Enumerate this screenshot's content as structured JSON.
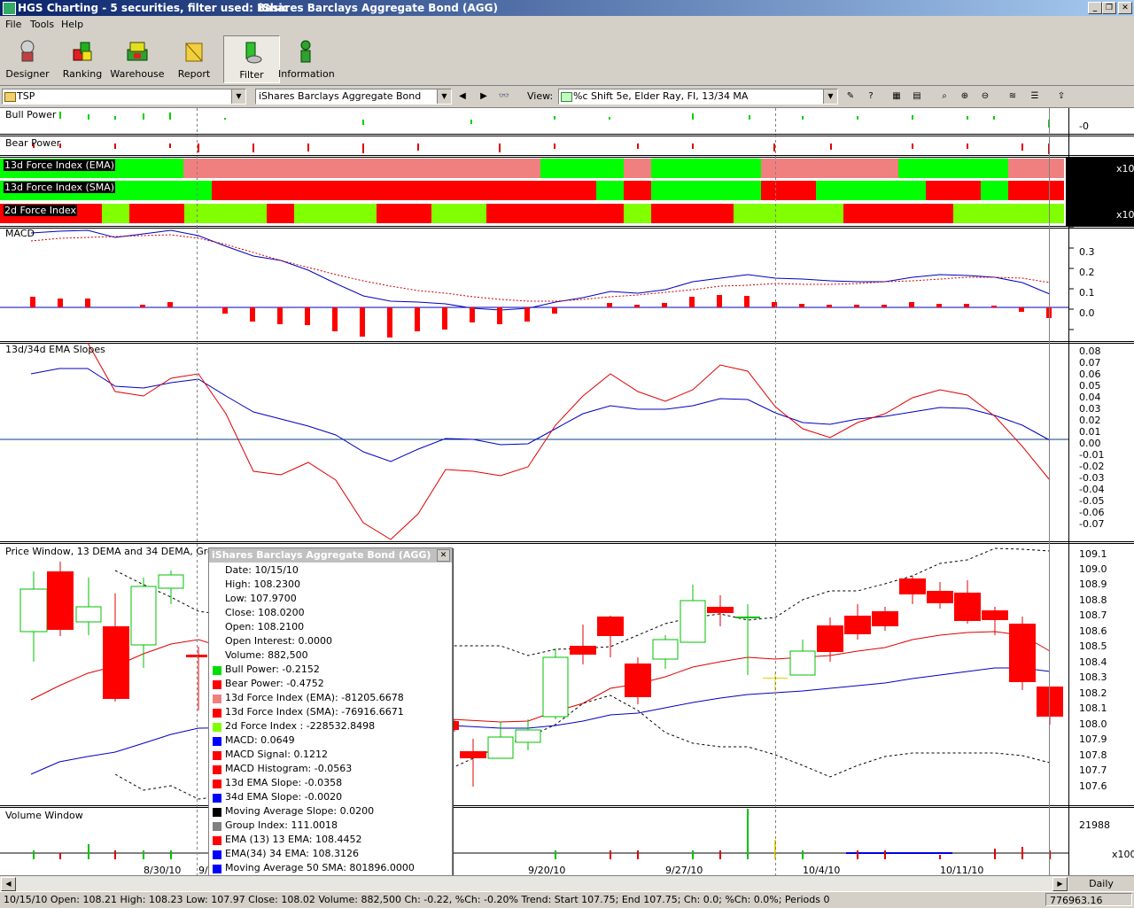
{
  "window": {
    "title": "HGS Charting - 5 securities, filter used: Basic",
    "security_title": "iShares Barclays Aggregate Bond (AGG)",
    "minimize": "_",
    "restore": "❐",
    "close": "✕"
  },
  "menu": [
    "File",
    "Tools",
    "Help"
  ],
  "toolbar": [
    {
      "label": "Designer",
      "icon": "designer-icon"
    },
    {
      "label": "Ranking",
      "icon": "ranking-icon"
    },
    {
      "label": "Warehouse",
      "icon": "warehouse-icon"
    },
    {
      "label": "Report",
      "icon": "report-icon"
    },
    {
      "label": "Filter",
      "icon": "filter-icon",
      "active": true
    },
    {
      "label": "Information",
      "icon": "information-icon"
    }
  ],
  "selectors": {
    "group": "TSP",
    "security": "iShares Barclays Aggregate Bond",
    "view_label": "View:",
    "view": "%c Shift 5e, Elder Ray, FI, 13/34 MA"
  },
  "panels": {
    "bull_power": "Bull Power",
    "bear_power": "Bear Power",
    "fi_ema": "13d Force Index (EMA)",
    "fi_sma": "13d Force Index (SMA)",
    "fi_2d": "2d Force Index",
    "macd": "MACD",
    "slopes": "13d/34d EMA Slopes",
    "price": "Price Window, 13 DEMA and 34 DEMA, Group",
    "volume": "Volume Window"
  },
  "axis": {
    "bull_value": "-0",
    "x10_a": "x10",
    "x10_b": "x10",
    "macd_ticks": [
      "0.3",
      "0.2",
      "0.1",
      "0.0"
    ],
    "slope_ticks": [
      "0.08",
      "0.07",
      "0.06",
      "0.05",
      "0.04",
      "0.03",
      "0.02",
      "0.01",
      "0.00",
      "-0.01",
      "-0.02",
      "-0.03",
      "-0.04",
      "-0.05",
      "-0.06",
      "-0.07"
    ],
    "price_ticks": [
      "109.1",
      "109.0",
      "108.9",
      "108.8",
      "108.7",
      "108.6",
      "108.5",
      "108.4",
      "108.3",
      "108.2",
      "108.1",
      "108.0",
      "107.9",
      "107.8",
      "107.7",
      "107.6"
    ],
    "volume_value": "21988",
    "volume_mult": "x100",
    "dates": [
      "8/30/10",
      "9/",
      "9/20/10",
      "9/27/10",
      "10/4/10",
      "10/11/10"
    ]
  },
  "popup": {
    "title": "iShares Barclays Aggregate Bond (AGG)",
    "close": "✕",
    "lines": [
      {
        "text": "Date: 10/15/10",
        "color": ""
      },
      {
        "text": "High: 108.2300",
        "color": ""
      },
      {
        "text": "Low: 107.9700",
        "color": ""
      },
      {
        "text": "Close: 108.0200",
        "color": ""
      },
      {
        "text": "Open: 108.2100",
        "color": ""
      },
      {
        "text": "Open Interest: 0.0000",
        "color": ""
      },
      {
        "text": "Volume: 882,500",
        "color": ""
      },
      {
        "text": "Bull Power: -0.2152",
        "color": "#00e000"
      },
      {
        "text": "Bear Power: -0.4752",
        "color": "#ff0000"
      },
      {
        "text": "13d Force Index (EMA): -81205.6678",
        "color": "#f08080"
      },
      {
        "text": "13d Force Index (SMA): -76916.6671",
        "color": "#ff0000"
      },
      {
        "text": "2d Force Index : -228532.8498",
        "color": "#80ff00"
      },
      {
        "text": "MACD: 0.0649",
        "color": "#0000ff"
      },
      {
        "text": "MACD Signal: 0.1212",
        "color": "#ff0000"
      },
      {
        "text": "MACD Histogram: -0.0563",
        "color": "#ff0000"
      },
      {
        "text": "13d EMA Slope: -0.0358",
        "color": "#ff0000"
      },
      {
        "text": "34d EMA Slope: -0.0020",
        "color": "#0000ff"
      },
      {
        "text": "Moving Average Slope: 0.0200",
        "color": "#000000"
      },
      {
        "text": "Group Index: 111.0018",
        "color": "#808080"
      },
      {
        "text": "EMA (13) 13 EMA: 108.4452",
        "color": "#ff0000"
      },
      {
        "text": "EMA(34) 34 EMA: 108.3126",
        "color": "#0000ff"
      },
      {
        "text": "Moving Average 50 SMA: 801896.0000",
        "color": "#0000ff"
      }
    ]
  },
  "scroll": {
    "left": "◀",
    "right": "▶"
  },
  "period": "Daily",
  "status": {
    "text": "10/15/10 Open: 108.21 High: 108.23 Low: 107.97 Close: 108.02 Volume: 882,500 Ch: -0.22, %Ch: -0.20%  Trend: Start 107.75; End 107.75; Ch: 0.0; %Ch: 0.0%; Periods 0",
    "right": "776963.16"
  }
}
